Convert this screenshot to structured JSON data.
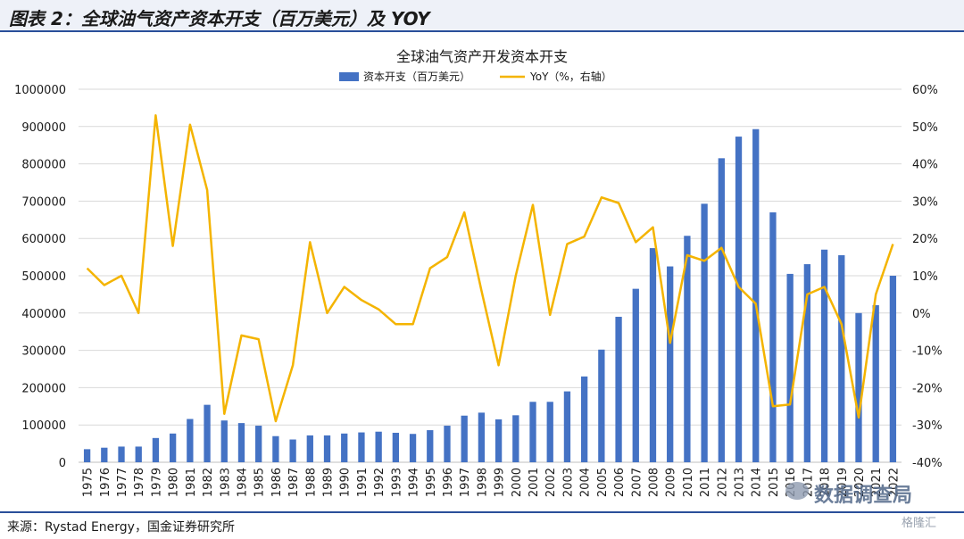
{
  "figure": {
    "title": "图表 2：全球油气资产资本开支（百万美元）及 YOY",
    "source": "来源：Rystad Energy，国金证券研究所",
    "watermark": "数据调查局",
    "brand": "格隆汇"
  },
  "colors": {
    "bar": "#4472c4",
    "line": "#f4b400",
    "grid": "#d9d9d9",
    "header_bg": "#eef1f8",
    "rule": "#2a4f9a"
  },
  "chart_data": {
    "type": "bar",
    "title": "全球油气资产开发资本开支",
    "categories": [
      "1975",
      "1976",
      "1977",
      "1978",
      "1979",
      "1980",
      "1981",
      "1982",
      "1983",
      "1984",
      "1985",
      "1986",
      "1987",
      "1988",
      "1989",
      "1990",
      "1991",
      "1992",
      "1993",
      "1994",
      "1995",
      "1996",
      "1997",
      "1998",
      "1999",
      "2000",
      "2001",
      "2002",
      "2003",
      "2004",
      "2005",
      "2006",
      "2007",
      "2008",
      "2009",
      "2010",
      "2011",
      "2012",
      "2013",
      "2014",
      "2015",
      "2016",
      "2017",
      "2018",
      "2019",
      "2020",
      "2021",
      "2022"
    ],
    "series": [
      {
        "name": "资本开支（百万美元）",
        "type": "bar",
        "axis": "left",
        "values": [
          35000,
          39000,
          42000,
          42000,
          65000,
          77000,
          116000,
          154000,
          112000,
          105000,
          98000,
          70000,
          61000,
          72000,
          72000,
          77000,
          80000,
          82000,
          79000,
          76000,
          86000,
          98000,
          125000,
          133000,
          115000,
          126000,
          162000,
          162000,
          190000,
          230000,
          302000,
          390000,
          465000,
          574000,
          525000,
          607000,
          693000,
          815000,
          873000,
          893000,
          670000,
          505000,
          531000,
          570000,
          555000,
          400000,
          421000,
          500000
        ]
      },
      {
        "name": "YoY（%，右轴）",
        "type": "line",
        "axis": "right",
        "values": [
          12,
          7.5,
          10,
          0,
          53,
          18,
          50.5,
          33,
          -27,
          -6,
          -7,
          -29,
          -14,
          19,
          0,
          7,
          3.5,
          1,
          -3,
          -3,
          12,
          15,
          27,
          6,
          -14,
          10,
          29,
          -0.5,
          18.5,
          20.5,
          31,
          29.5,
          19,
          23,
          -8,
          15.5,
          14,
          17.5,
          7,
          2.5,
          -25,
          -24.5,
          5,
          7,
          -3,
          -28,
          5,
          18.5
        ]
      }
    ],
    "y_left": {
      "min": 0,
      "max": 1000000,
      "step": 100000,
      "tick_labels": [
        "0",
        "100000",
        "200000",
        "300000",
        "400000",
        "500000",
        "600000",
        "700000",
        "800000",
        "900000",
        "1000000"
      ]
    },
    "y_right": {
      "min": -40,
      "max": 60,
      "step": 10,
      "tick_labels": [
        "-40%",
        "-30%",
        "-20%",
        "-10%",
        "0%",
        "10%",
        "20%",
        "30%",
        "40%",
        "50%",
        "60%"
      ]
    },
    "grid": true,
    "legend": "top"
  }
}
